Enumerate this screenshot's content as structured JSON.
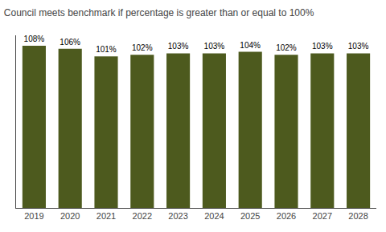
{
  "chart_data": {
    "type": "bar",
    "title": "Council meets benchmark if percentage is greater than or equal to 100%",
    "categories": [
      "2019",
      "2020",
      "2021",
      "2022",
      "2023",
      "2024",
      "2025",
      "2026",
      "2027",
      "2028"
    ],
    "values": [
      108,
      106,
      101,
      102,
      103,
      103,
      104,
      102,
      103,
      103
    ],
    "value_labels": [
      "108%",
      "106%",
      "101%",
      "102%",
      "103%",
      "103%",
      "104%",
      "102%",
      "103%",
      "103%"
    ],
    "color": "#4d5a1e",
    "ylim": [
      0,
      115
    ],
    "data_labels": true,
    "tick_labels": "x",
    "grid": false
  }
}
